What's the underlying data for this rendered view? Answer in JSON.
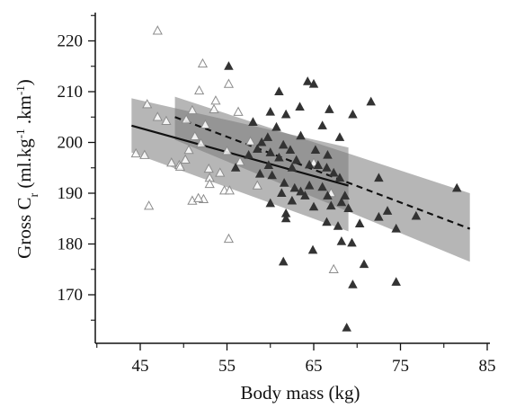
{
  "chart_data": {
    "type": "scatter",
    "xlabel": "Body mass (kg)",
    "ylabel": {
      "main": "Gross C",
      "sub": "r",
      "unit_open": " (ml.kg",
      "sup1": "-1",
      "unit_mid": " .km",
      "sup2": "-1",
      "unit_close": ")"
    },
    "xlim": [
      37,
      85
    ],
    "ylim": [
      160,
      226
    ],
    "x_ticks": [
      45,
      55,
      65,
      75,
      85
    ],
    "y_ticks": [
      170,
      180,
      190,
      200,
      210,
      220
    ],
    "grid": false,
    "legend": "none",
    "colors": {
      "open_marker": "#8c8c8c",
      "filled_marker": "#333333",
      "band": "#7a7a7a",
      "line": "#111111"
    },
    "series": [
      {
        "marker": "open-triangle",
        "points": [
          [
            47.0,
            222
          ],
          [
            52.2,
            215.5
          ],
          [
            55.2,
            211.5
          ],
          [
            51.8,
            210.2
          ],
          [
            45.8,
            207.5
          ],
          [
            53.7,
            208.2
          ],
          [
            53.5,
            206.5
          ],
          [
            56.3,
            206.0
          ],
          [
            51.0,
            206.3
          ],
          [
            47.0,
            205.0
          ],
          [
            50.3,
            204.5
          ],
          [
            48.0,
            204.2
          ],
          [
            52.5,
            203.5
          ],
          [
            51.3,
            201.2
          ],
          [
            57.7,
            200.2
          ],
          [
            52.0,
            199.8
          ],
          [
            55.0,
            198.3
          ],
          [
            50.6,
            198.5
          ],
          [
            44.5,
            197.8
          ],
          [
            45.5,
            197.5
          ],
          [
            56.5,
            196.2
          ],
          [
            48.6,
            196.0
          ],
          [
            49.5,
            195.5
          ],
          [
            49.6,
            195.2
          ],
          [
            50.2,
            196.6
          ],
          [
            52.9,
            194.8
          ],
          [
            53.0,
            193.0
          ],
          [
            54.2,
            194.0
          ],
          [
            54.7,
            190.5
          ],
          [
            55.3,
            190.5
          ],
          [
            53.0,
            191.8
          ],
          [
            51.0,
            188.5
          ],
          [
            52.3,
            188.8
          ],
          [
            51.7,
            189.0
          ],
          [
            58.5,
            191.5
          ],
          [
            46.0,
            187.5
          ],
          [
            55.2,
            181.0
          ],
          [
            67.3,
            175.0
          ],
          [
            67.0,
            190.0
          ],
          [
            65.0,
            196.0
          ]
        ]
      },
      {
        "marker": "filled-triangle",
        "points": [
          [
            55.2,
            215.0
          ],
          [
            64.3,
            212.0
          ],
          [
            65.0,
            211.5
          ],
          [
            61.0,
            210.0
          ],
          [
            71.6,
            208.0
          ],
          [
            66.8,
            206.5
          ],
          [
            60.0,
            206.0
          ],
          [
            63.4,
            207.0
          ],
          [
            61.8,
            205.5
          ],
          [
            69.5,
            205.5
          ],
          [
            58.0,
            204.0
          ],
          [
            60.7,
            203.0
          ],
          [
            66.0,
            203.3
          ],
          [
            68.0,
            201.0
          ],
          [
            63.5,
            201.3
          ],
          [
            59.7,
            201.0
          ],
          [
            59.0,
            200.0
          ],
          [
            61.5,
            199.5
          ],
          [
            62.3,
            198.5
          ],
          [
            58.5,
            198.7
          ],
          [
            65.2,
            198.5
          ],
          [
            60.0,
            198.0
          ],
          [
            66.6,
            197.5
          ],
          [
            57.5,
            197.5
          ],
          [
            61.0,
            197.0
          ],
          [
            63.0,
            196.5
          ],
          [
            64.5,
            195.6
          ],
          [
            59.8,
            195.5
          ],
          [
            62.5,
            195.0
          ],
          [
            56.0,
            195.0
          ],
          [
            65.5,
            195.5
          ],
          [
            66.5,
            195.0
          ],
          [
            67.3,
            194.0
          ],
          [
            58.8,
            193.8
          ],
          [
            60.2,
            193.5
          ],
          [
            68.0,
            193.0
          ],
          [
            72.5,
            193.0
          ],
          [
            61.6,
            192.0
          ],
          [
            62.8,
            191.0
          ],
          [
            64.5,
            191.5
          ],
          [
            66.0,
            191.2
          ],
          [
            63.5,
            190.3
          ],
          [
            64.0,
            189.5
          ],
          [
            61.3,
            190.0
          ],
          [
            66.6,
            189.5
          ],
          [
            68.6,
            189.5
          ],
          [
            81.5,
            191.0
          ],
          [
            62.5,
            188.5
          ],
          [
            60.0,
            188.0
          ],
          [
            65.0,
            187.3
          ],
          [
            67.0,
            187.5
          ],
          [
            69.0,
            187.0
          ],
          [
            68.2,
            188.2
          ],
          [
            73.5,
            186.5
          ],
          [
            76.8,
            185.5
          ],
          [
            72.5,
            185.3
          ],
          [
            61.8,
            186.0
          ],
          [
            61.8,
            185.0
          ],
          [
            70.3,
            184.0
          ],
          [
            66.5,
            184.3
          ],
          [
            67.8,
            183.5
          ],
          [
            74.5,
            183.0
          ],
          [
            69.4,
            180.2
          ],
          [
            68.2,
            180.5
          ],
          [
            64.9,
            178.8
          ],
          [
            61.5,
            176.5
          ],
          [
            70.8,
            176.0
          ],
          [
            74.5,
            172.5
          ],
          [
            69.5,
            172.0
          ],
          [
            68.8,
            163.5
          ]
        ]
      }
    ],
    "fits": [
      {
        "style": "solid",
        "x": [
          44,
          69
        ],
        "y": [
          203.3,
          191.5
        ],
        "band_upper": [
          208.7,
          199.0
        ],
        "band_lower": [
          198.0,
          182.5
        ]
      },
      {
        "style": "dashed",
        "x": [
          49,
          83
        ],
        "y": [
          205.0,
          183.0
        ],
        "band_upper": [
          209.0,
          190.0
        ],
        "band_lower": [
          200.5,
          176.5
        ]
      }
    ]
  }
}
